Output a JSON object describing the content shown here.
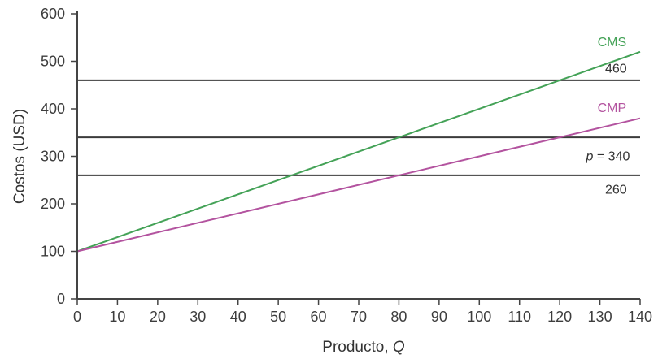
{
  "chart_data": {
    "type": "line",
    "title": "",
    "xlabel": "Producto,",
    "xlabel_var": "Q",
    "ylabel": "Costos (USD)",
    "xlim": [
      0,
      140
    ],
    "ylim": [
      0,
      600
    ],
    "x_ticks": [
      0,
      10,
      20,
      30,
      40,
      50,
      60,
      70,
      80,
      90,
      100,
      110,
      120,
      130,
      140
    ],
    "y_ticks": [
      0,
      100,
      200,
      300,
      400,
      500,
      600
    ],
    "grid": false,
    "legend_position": "none",
    "axis_color": "#444444",
    "text_color": "#3d3d3d",
    "background_color": "#ffffff",
    "series": [
      {
        "name": "CMS",
        "color": "#44a257",
        "points": [
          {
            "q": 0,
            "cost": 100
          },
          {
            "q": 140,
            "cost": 520
          }
        ]
      },
      {
        "name": "CMP",
        "color": "#b3539f",
        "points": [
          {
            "q": 0,
            "cost": 100
          },
          {
            "q": 140,
            "cost": 380
          }
        ]
      }
    ],
    "hlines": [
      {
        "name": "hline-460",
        "value": 460,
        "color": "#3b3b3b"
      },
      {
        "name": "hline-340",
        "value": 340,
        "color": "#3b3b3b"
      },
      {
        "name": "hline-260",
        "value": 260,
        "color": "#3b3b3b"
      }
    ],
    "annotations": [
      {
        "name": "cms-line-label",
        "text": "CMS",
        "color": "#44a257",
        "q": 133,
        "cost": 540
      },
      {
        "name": "hline-460-label",
        "text": "460",
        "color": "#333333",
        "q": 134,
        "cost": 485
      },
      {
        "name": "cmp-line-label",
        "text": "CMP",
        "color": "#b3539f",
        "q": 133,
        "cost": 402
      },
      {
        "name": "price-line-label",
        "italic_var": "p",
        "text": " = 340",
        "color": "#333333",
        "q": 132,
        "cost": 300
      },
      {
        "name": "hline-260-label",
        "text": "260",
        "color": "#333333",
        "q": 134,
        "cost": 230
      }
    ]
  }
}
